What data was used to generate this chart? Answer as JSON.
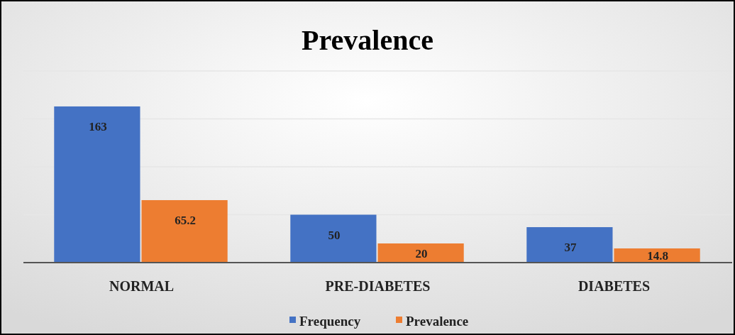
{
  "chart_data": {
    "type": "bar",
    "title": "Prevalence",
    "categories": [
      "NORMAL",
      "PRE-DIABETES",
      "DIABETES"
    ],
    "series": [
      {
        "name": "Frequency",
        "color": "#4472c4",
        "values": [
          163,
          50,
          37
        ]
      },
      {
        "name": "Prevalence",
        "color": "#ed7d31",
        "values": [
          65.2,
          20,
          14.8
        ]
      }
    ],
    "ylim": [
      0,
      200
    ],
    "yticks": [
      0,
      50,
      100,
      150,
      200
    ],
    "tick_labels": "x",
    "grid": "y",
    "data_labels": true,
    "legend": "bottom"
  }
}
